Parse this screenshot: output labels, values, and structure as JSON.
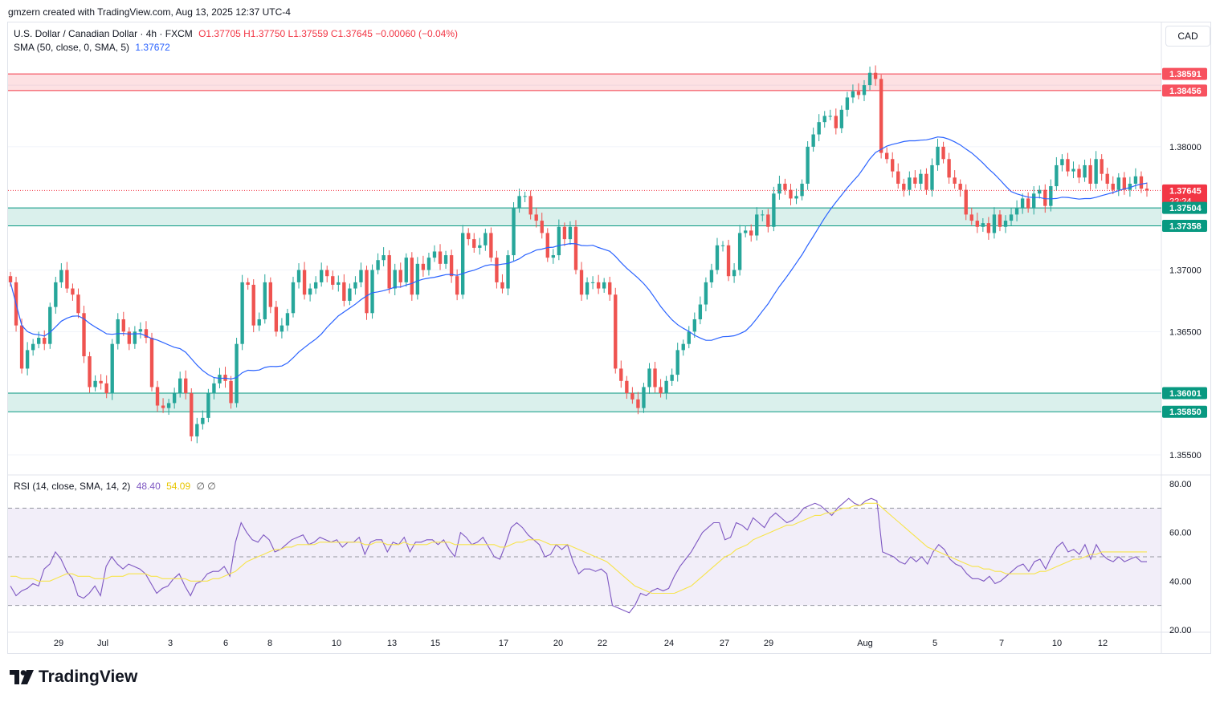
{
  "header": {
    "credit": "gmzern created with TradingView.com, Aug 13, 2025 12:37 UTC-4"
  },
  "currency": "CAD",
  "legend": {
    "symbol": "U.S. Dollar / Canadian Dollar · 4h · FXCM",
    "ohlc": "O1.37705  H1.37750  L1.37559  C1.37645  −0.00060 (−0.04%)",
    "sma_label": "SMA (50, close, 0, SMA, 5)",
    "sma_value": "1.37672",
    "rsi_label": "RSI (14, close, SMA, 14, 2)",
    "rsi_value": "48.40",
    "rsi_sma_value": "54.09",
    "rsi_extra": "∅  ∅"
  },
  "logo": {
    "text": "TradingView"
  },
  "colors": {
    "up": "#26a69a",
    "down": "#ef5350",
    "sma": "#2962ff",
    "rsi": "#7e57c2",
    "rsi_sma": "#f7e44a"
  },
  "chart_data": [
    {
      "type": "candlestick",
      "title": "U.S. Dollar / Canadian Dollar · 4h · FXCM",
      "ylim": [
        1.3535,
        1.388
      ],
      "y_ticks": [
        "1.38000",
        "1.37000",
        "1.36500",
        "1.35500"
      ],
      "x_ticks": [
        "29",
        "Jul",
        "3",
        "6",
        "8",
        "10",
        "13",
        "15",
        "17",
        "20",
        "22",
        "24",
        "27",
        "29",
        "Aug",
        "5",
        "7",
        "10",
        "12"
      ],
      "price_labels": [
        {
          "label": "1.38591",
          "value": 1.38591,
          "color": "#f7525f"
        },
        {
          "label": "1.38456",
          "value": 1.38456,
          "color": "#f7525f"
        },
        {
          "label": "1.37645",
          "value": 1.37645,
          "color": "#f23645",
          "sub": "22:24"
        },
        {
          "label": "1.37504",
          "value": 1.37504,
          "color": "#089981"
        },
        {
          "label": "1.37358",
          "value": 1.37358,
          "color": "#089981"
        },
        {
          "label": "1.36001",
          "value": 1.36001,
          "color": "#089981"
        },
        {
          "label": "1.35850",
          "value": 1.3585,
          "color": "#089981"
        }
      ],
      "zones": [
        {
          "name": "resistance",
          "from": 1.38456,
          "to": 1.38591
        },
        {
          "name": "support-1",
          "from": 1.37358,
          "to": 1.37504
        },
        {
          "name": "support-2",
          "from": 1.3585,
          "to": 1.36001
        }
      ],
      "last_close": 1.37645,
      "close": [
        1.369,
        1.3655,
        1.362,
        1.3635,
        1.364,
        1.3645,
        1.364,
        1.367,
        1.369,
        1.37,
        1.3685,
        1.368,
        1.3665,
        1.363,
        1.3605,
        1.361,
        1.3608,
        1.36,
        1.364,
        1.366,
        1.365,
        1.364,
        1.365,
        1.3652,
        1.3645,
        1.3605,
        1.359,
        1.3588,
        1.3592,
        1.36,
        1.3612,
        1.36,
        1.3565,
        1.3575,
        1.358,
        1.36,
        1.3608,
        1.3615,
        1.361,
        1.3592,
        1.364,
        1.369,
        1.3688,
        1.3655,
        1.366,
        1.369,
        1.367,
        1.365,
        1.3655,
        1.3665,
        1.369,
        1.37,
        1.368,
        1.3685,
        1.369,
        1.37,
        1.3695,
        1.3688,
        1.369,
        1.3675,
        1.3685,
        1.369,
        1.37,
        1.3665,
        1.37,
        1.3708,
        1.3712,
        1.3685,
        1.37,
        1.369,
        1.371,
        1.368,
        1.3705,
        1.37,
        1.371,
        1.3715,
        1.3705,
        1.3712,
        1.3695,
        1.368,
        1.373,
        1.3725,
        1.3718,
        1.372,
        1.373,
        1.371,
        1.369,
        1.3685,
        1.3712,
        1.375,
        1.376,
        1.376,
        1.3745,
        1.374,
        1.373,
        1.371,
        1.3712,
        1.3735,
        1.3725,
        1.3735,
        1.37,
        1.368,
        1.369,
        1.369,
        1.3685,
        1.369,
        1.368,
        1.362,
        1.361,
        1.36,
        1.3595,
        1.3588,
        1.3605,
        1.362,
        1.3605,
        1.36,
        1.361,
        1.3615,
        1.3635,
        1.364,
        1.365,
        1.366,
        1.3672,
        1.369,
        1.37,
        1.372,
        1.372,
        1.3695,
        1.37,
        1.373,
        1.3732,
        1.3728,
        1.3745,
        1.3745,
        1.3735,
        1.3762,
        1.377,
        1.3765,
        1.3758,
        1.376,
        1.377,
        1.38,
        1.381,
        1.382,
        1.3825,
        1.3825,
        1.3815,
        1.383,
        1.384,
        1.3845,
        1.3842,
        1.385,
        1.386,
        1.3855,
        1.3795,
        1.379,
        1.378,
        1.377,
        1.3765,
        1.3775,
        1.377,
        1.3778,
        1.3765,
        1.3785,
        1.38,
        1.379,
        1.3775,
        1.377,
        1.3765,
        1.3745,
        1.374,
        1.3735,
        1.3738,
        1.373,
        1.3745,
        1.3735,
        1.374,
        1.3745,
        1.375,
        1.3758,
        1.375,
        1.3762,
        1.3765,
        1.3752,
        1.3768,
        1.3785,
        1.379,
        1.378,
        1.3782,
        1.3775,
        1.3785,
        1.377,
        1.379,
        1.3778,
        1.377,
        1.3765,
        1.3775,
        1.3765,
        1.377,
        1.3776,
        1.3766,
        1.37645
      ]
    },
    {
      "type": "line",
      "title": "RSI (14, close, SMA, 14, 2)",
      "ylim": [
        20,
        80
      ],
      "y_ticks": [
        "80.00",
        "60.00",
        "40.00",
        "20.00"
      ],
      "bands": [
        30,
        50,
        70
      ],
      "series": [
        {
          "name": "RSI",
          "values": [
            38,
            34,
            36,
            37,
            39,
            38,
            45,
            47,
            52,
            49,
            44,
            41,
            34,
            33,
            35,
            38,
            34,
            46,
            50,
            47,
            45,
            47,
            46,
            45,
            43,
            39,
            35,
            37,
            38,
            41,
            43,
            38,
            34,
            39,
            40,
            43,
            44,
            44,
            46,
            42,
            56,
            64,
            60,
            57,
            56,
            59,
            57,
            52,
            53,
            55,
            57,
            58,
            59,
            55,
            56,
            58,
            57,
            56,
            57,
            54,
            56,
            56,
            58,
            51,
            56,
            57,
            57,
            52,
            56,
            55,
            58,
            52,
            56,
            56,
            57,
            57,
            55,
            57,
            53,
            50,
            60,
            58,
            55,
            56,
            58,
            54,
            50,
            49,
            55,
            62,
            64,
            62,
            59,
            57,
            55,
            50,
            51,
            55,
            53,
            55,
            48,
            43,
            45,
            45,
            44,
            45,
            43,
            30,
            29,
            28,
            27,
            30,
            35,
            34,
            36,
            37,
            36,
            37,
            42,
            46,
            49,
            52,
            56,
            60,
            62,
            64,
            64,
            57,
            58,
            64,
            63,
            61,
            66,
            64,
            62,
            66,
            68,
            66,
            64,
            65,
            67,
            70,
            71,
            72,
            71,
            69,
            67,
            70,
            72,
            74,
            72,
            71,
            73,
            74,
            73,
            52,
            51,
            50,
            48,
            47,
            50,
            48,
            50,
            47,
            52,
            55,
            53,
            49,
            47,
            46,
            43,
            41,
            41,
            40,
            42,
            39,
            40,
            42,
            44,
            46,
            47,
            44,
            48,
            49,
            45,
            50,
            54,
            56,
            52,
            53,
            51,
            55,
            49,
            55,
            51,
            49,
            48,
            50,
            48,
            49,
            50,
            48,
            48
          ]
        },
        {
          "name": "RSI-based MA",
          "values": [
            42,
            42,
            41,
            41,
            41,
            40,
            40,
            40,
            41,
            42,
            43,
            43,
            42,
            42,
            42,
            41,
            41,
            41,
            42,
            42,
            42,
            43,
            43,
            43,
            43,
            42,
            42,
            41,
            41,
            41,
            41,
            41,
            40,
            40,
            40,
            40,
            41,
            41,
            42,
            43,
            44,
            46,
            48,
            49,
            50,
            51,
            52,
            53,
            53,
            54,
            54,
            55,
            55,
            55,
            55,
            56,
            56,
            56,
            56,
            56,
            56,
            56,
            56,
            55,
            55,
            56,
            56,
            55,
            55,
            55,
            56,
            55,
            55,
            55,
            55,
            56,
            56,
            56,
            56,
            55,
            55,
            55,
            55,
            55,
            55,
            55,
            55,
            54,
            54,
            55,
            56,
            56,
            57,
            57,
            57,
            56,
            55,
            55,
            55,
            55,
            54,
            53,
            52,
            51,
            50,
            49,
            48,
            46,
            44,
            42,
            40,
            38,
            37,
            36,
            35,
            35,
            35,
            35,
            35,
            36,
            37,
            38,
            40,
            42,
            44,
            46,
            48,
            50,
            51,
            53,
            54,
            55,
            57,
            58,
            59,
            60,
            61,
            62,
            63,
            63,
            64,
            65,
            66,
            67,
            67,
            68,
            68,
            69,
            70,
            70,
            71,
            71,
            72,
            72,
            72,
            70,
            68,
            66,
            64,
            62,
            60,
            58,
            56,
            54,
            53,
            52,
            51,
            50,
            49,
            48,
            47,
            46,
            46,
            45,
            45,
            44,
            44,
            43,
            43,
            43,
            43,
            43,
            43,
            44,
            44,
            45,
            46,
            47,
            48,
            49,
            49,
            50,
            51,
            51,
            52,
            52,
            52,
            52,
            52,
            52,
            52,
            52,
            52
          ]
        }
      ]
    }
  ]
}
